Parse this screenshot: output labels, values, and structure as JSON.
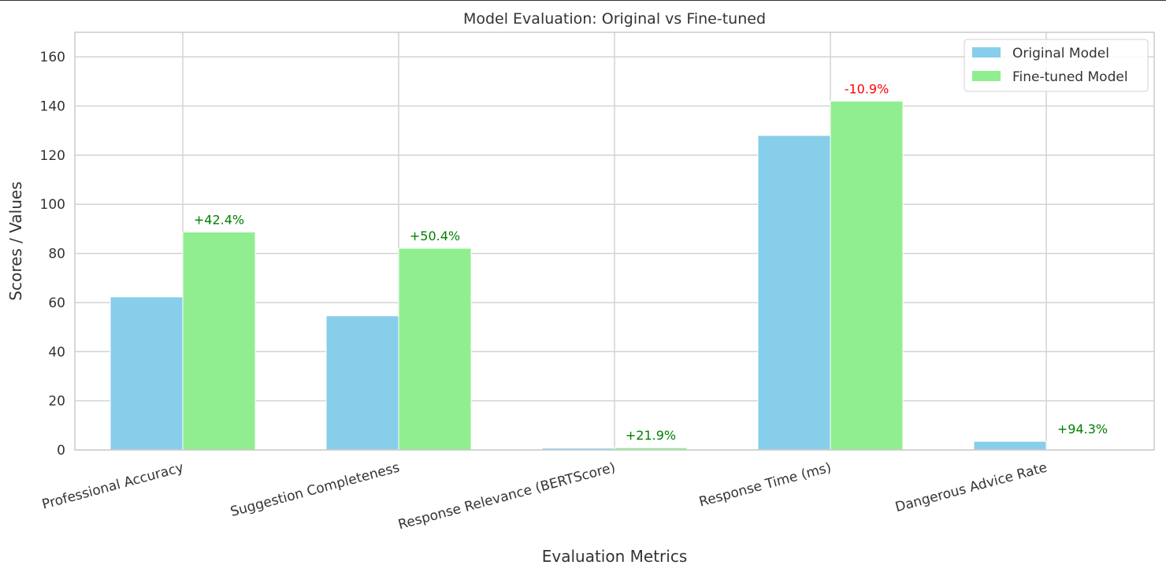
{
  "chart_data": {
    "type": "bar",
    "title": "Model Evaluation: Original vs Fine-tuned",
    "xlabel": "Evaluation Metrics",
    "ylabel": "Scores / Values",
    "ylim": [
      0,
      170
    ],
    "yticks": [
      "0",
      "20",
      "40",
      "60",
      "80",
      "100",
      "120",
      "140",
      "160"
    ],
    "grid": true,
    "legend_position": "top-right",
    "categories": [
      "Professional Accuracy",
      "Suggestion Completeness",
      "Response Relevance (BERTScore)",
      "Response Time (ms)",
      "Dangerous Advice Rate"
    ],
    "series": [
      {
        "name": "Original Model",
        "color": "#87ceeb",
        "values": [
          62.3,
          54.6,
          0.73,
          128.0,
          3.5
        ]
      },
      {
        "name": "Fine-tuned Model",
        "color": "#90ee90",
        "values": [
          88.7,
          82.1,
          0.89,
          142.0,
          0.2
        ]
      }
    ],
    "annotations": [
      {
        "category": "Professional Accuracy",
        "text": "+42.4%",
        "color": "#008000"
      },
      {
        "category": "Suggestion Completeness",
        "text": "+50.4%",
        "color": "#008000"
      },
      {
        "category": "Response Relevance (BERTScore)",
        "text": "+21.9%",
        "color": "#008000"
      },
      {
        "category": "Response Time (ms)",
        "text": "-10.9%",
        "color": "#ff0000"
      },
      {
        "category": "Dangerous Advice Rate",
        "text": "+94.3%",
        "color": "#008000"
      }
    ]
  }
}
